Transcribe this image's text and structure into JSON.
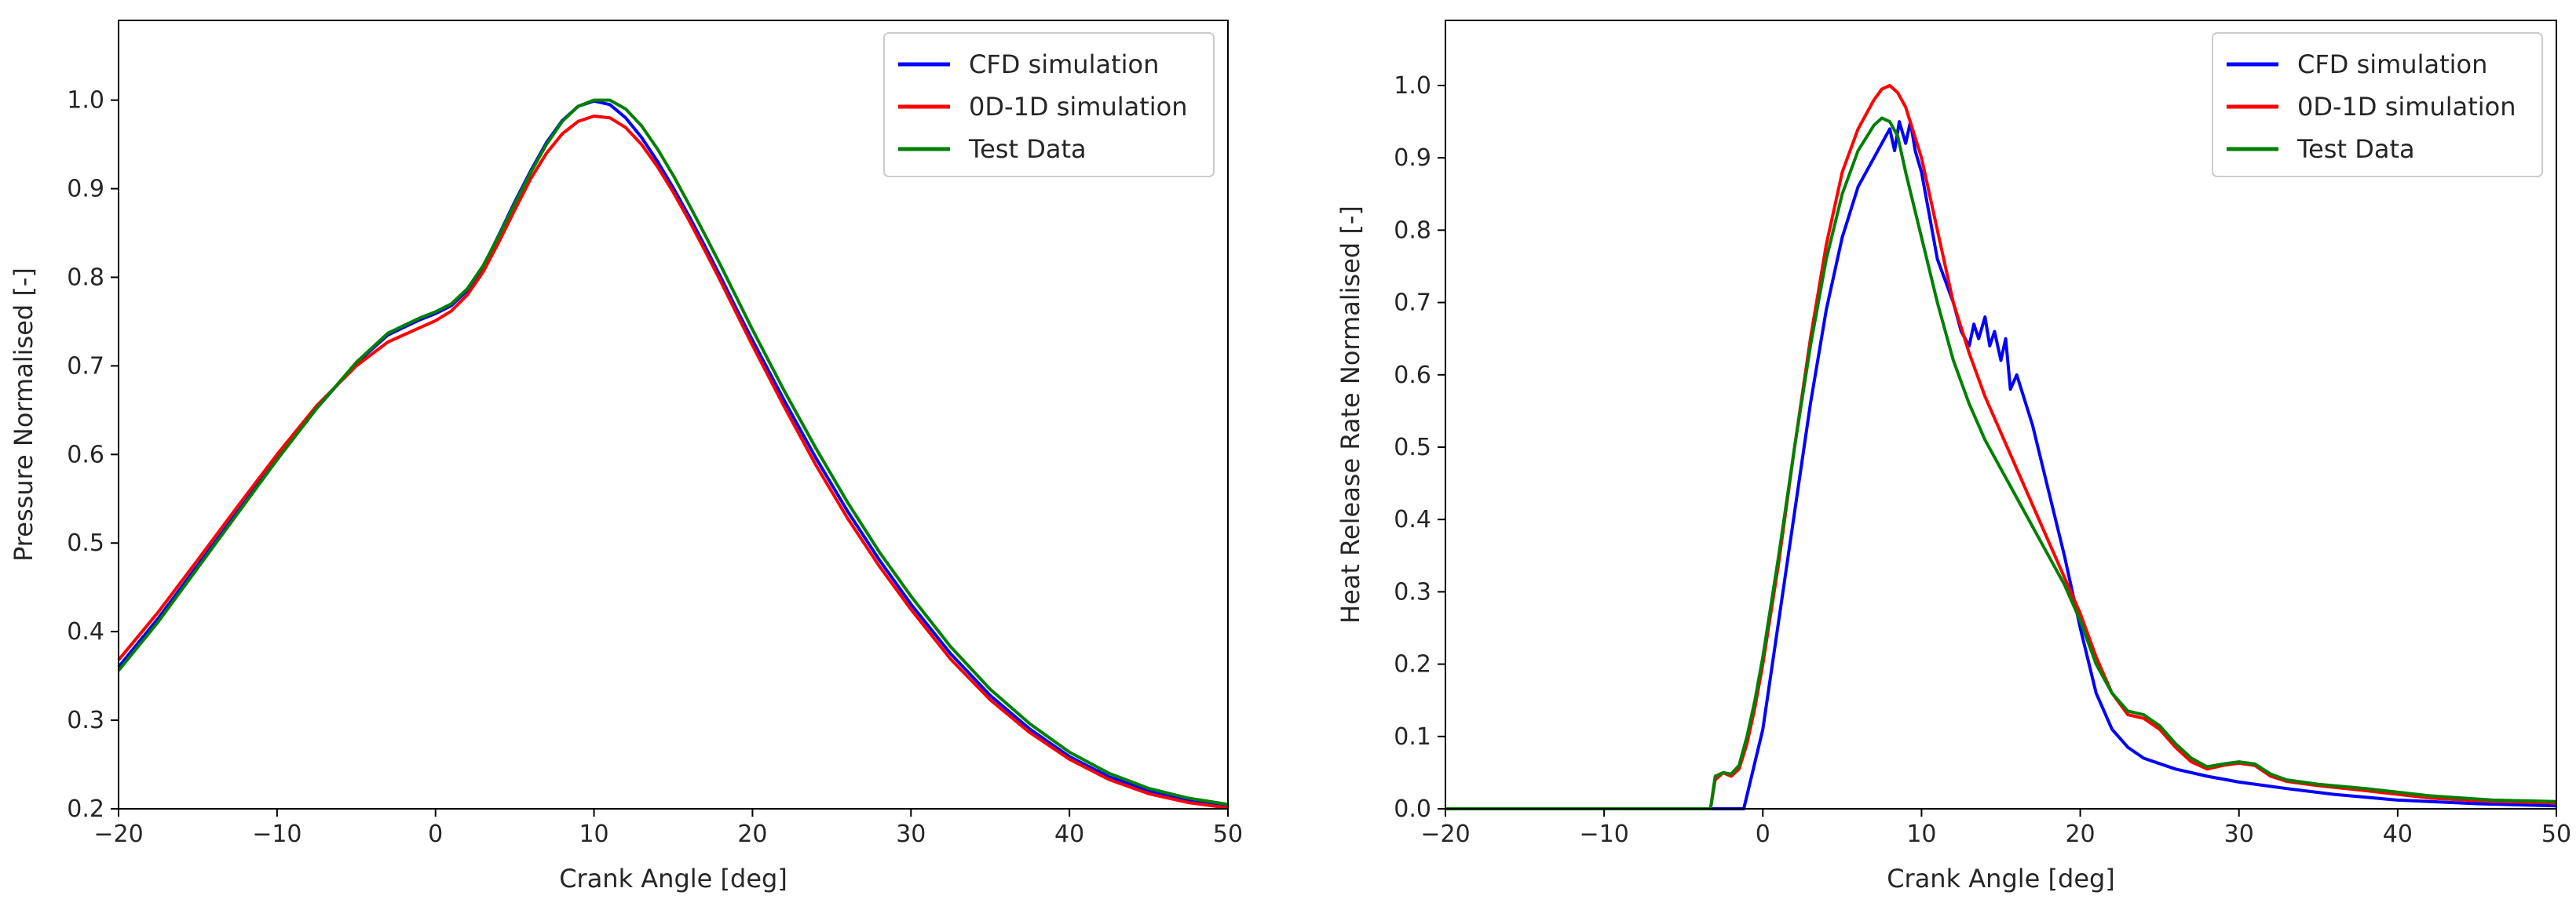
{
  "chart_data": [
    {
      "type": "line",
      "xlabel": "Crank Angle [deg]",
      "ylabel": "Pressure Normalised [-]",
      "xlim": [
        -20,
        50
      ],
      "ylim": [
        0.2,
        1.09
      ],
      "xticks": [
        -20,
        -10,
        0,
        10,
        20,
        30,
        40,
        50
      ],
      "xtick_labels": [
        "−20",
        "−10",
        "0",
        "10",
        "20",
        "30",
        "40",
        "50"
      ],
      "yticks": [
        0.2,
        0.3,
        0.4,
        0.5,
        0.6,
        0.7,
        0.8,
        0.9,
        1.0
      ],
      "ytick_labels": [
        "0.2",
        "0.3",
        "0.4",
        "0.5",
        "0.6",
        "0.7",
        "0.8",
        "0.9",
        "1.0"
      ],
      "grid": false,
      "legend_position": "top-right",
      "series": [
        {
          "name": "CFD simulation",
          "color": "#0000ff",
          "x": [
            -20,
            -17.5,
            -15,
            -12.5,
            -10,
            -7.5,
            -5,
            -3,
            -1,
            0,
            1,
            2,
            3,
            4,
            5,
            6,
            7,
            8,
            9,
            10,
            11,
            12,
            13,
            14,
            15,
            16,
            17,
            18,
            19,
            20,
            22,
            24,
            26,
            28,
            30,
            32.5,
            35,
            37.5,
            40,
            42.5,
            45,
            47.5,
            50
          ],
          "y": [
            0.36,
            0.415,
            0.475,
            0.535,
            0.595,
            0.652,
            0.703,
            0.735,
            0.752,
            0.759,
            0.768,
            0.785,
            0.812,
            0.848,
            0.885,
            0.92,
            0.952,
            0.977,
            0.993,
            0.999,
            0.995,
            0.98,
            0.958,
            0.931,
            0.901,
            0.869,
            0.835,
            0.8,
            0.764,
            0.729,
            0.661,
            0.596,
            0.536,
            0.481,
            0.431,
            0.375,
            0.328,
            0.29,
            0.259,
            0.236,
            0.22,
            0.209,
            0.202
          ]
        },
        {
          "name": "0D-1D simulation",
          "color": "#ff0000",
          "x": [
            -20,
            -17.5,
            -15,
            -12.5,
            -10,
            -7.5,
            -5,
            -3,
            -1,
            0,
            1,
            2,
            3,
            4,
            5,
            6,
            7,
            8,
            9,
            10,
            11,
            12,
            13,
            14,
            15,
            16,
            17,
            18,
            19,
            20,
            22,
            24,
            26,
            28,
            30,
            32.5,
            35,
            37.5,
            40,
            42.5,
            45,
            47.5,
            50
          ],
          "y": [
            0.368,
            0.422,
            0.481,
            0.541,
            0.6,
            0.655,
            0.7,
            0.727,
            0.743,
            0.751,
            0.762,
            0.78,
            0.806,
            0.84,
            0.876,
            0.911,
            0.94,
            0.962,
            0.976,
            0.982,
            0.98,
            0.969,
            0.95,
            0.925,
            0.896,
            0.864,
            0.83,
            0.795,
            0.759,
            0.723,
            0.654,
            0.588,
            0.528,
            0.474,
            0.425,
            0.369,
            0.323,
            0.286,
            0.256,
            0.233,
            0.217,
            0.207,
            0.201
          ]
        },
        {
          "name": "Test Data",
          "color": "#008000",
          "x": [
            -20,
            -17.5,
            -15,
            -12.5,
            -10,
            -7.5,
            -5,
            -3,
            -1,
            0,
            1,
            2,
            3,
            4,
            5,
            6,
            7,
            8,
            9,
            10,
            11,
            12,
            13,
            14,
            15,
            16,
            17,
            18,
            19,
            20,
            22,
            24,
            26,
            28,
            30,
            32.5,
            35,
            37.5,
            40,
            42.5,
            45,
            47.5,
            50
          ],
          "y": [
            0.356,
            0.411,
            0.472,
            0.533,
            0.594,
            0.652,
            0.704,
            0.737,
            0.754,
            0.761,
            0.77,
            0.787,
            0.813,
            0.847,
            0.883,
            0.918,
            0.95,
            0.976,
            0.993,
            1.0,
            1.0,
            0.99,
            0.971,
            0.945,
            0.915,
            0.882,
            0.848,
            0.813,
            0.777,
            0.741,
            0.672,
            0.607,
            0.546,
            0.49,
            0.44,
            0.383,
            0.335,
            0.296,
            0.264,
            0.24,
            0.223,
            0.212,
            0.205
          ]
        }
      ]
    },
    {
      "type": "line",
      "xlabel": "Crank Angle [deg]",
      "ylabel": "Heat Release Rate Normalised [-]",
      "xlim": [
        -20,
        50
      ],
      "ylim": [
        0.0,
        1.09
      ],
      "xticks": [
        -20,
        -10,
        0,
        10,
        20,
        30,
        40,
        50
      ],
      "xtick_labels": [
        "−20",
        "−10",
        "0",
        "10",
        "20",
        "30",
        "40",
        "50"
      ],
      "yticks": [
        0.0,
        0.1,
        0.2,
        0.3,
        0.4,
        0.5,
        0.6,
        0.7,
        0.8,
        0.9,
        1.0
      ],
      "ytick_labels": [
        "0.0",
        "0.1",
        "0.2",
        "0.3",
        "0.4",
        "0.5",
        "0.6",
        "0.7",
        "0.8",
        "0.9",
        "1.0"
      ],
      "grid": false,
      "legend_position": "top-right",
      "series": [
        {
          "name": "CFD simulation",
          "color": "#0000ff",
          "x": [
            -20,
            -2,
            -1.2,
            0,
            1,
            2,
            3,
            4,
            5,
            6,
            7,
            7.5,
            8,
            8.3,
            8.6,
            9,
            9.3,
            9.6,
            10,
            10.5,
            11,
            12,
            12.5,
            13,
            13.3,
            13.6,
            14,
            14.3,
            14.6,
            15,
            15.3,
            15.6,
            16,
            17,
            18,
            19,
            20,
            21,
            22,
            23,
            24,
            26,
            28,
            30,
            33,
            36,
            40,
            45,
            50
          ],
          "y": [
            0.0,
            0.0,
            0.0,
            0.11,
            0.26,
            0.41,
            0.56,
            0.69,
            0.79,
            0.86,
            0.9,
            0.92,
            0.94,
            0.91,
            0.95,
            0.92,
            0.95,
            0.91,
            0.88,
            0.82,
            0.76,
            0.7,
            0.66,
            0.64,
            0.67,
            0.65,
            0.68,
            0.64,
            0.66,
            0.62,
            0.65,
            0.58,
            0.6,
            0.53,
            0.44,
            0.35,
            0.25,
            0.16,
            0.11,
            0.085,
            0.07,
            0.055,
            0.045,
            0.037,
            0.028,
            0.02,
            0.012,
            0.007,
            0.004
          ]
        },
        {
          "name": "0D-1D simulation",
          "color": "#ff0000",
          "x": [
            -20,
            -3.3,
            -3,
            -2.5,
            -2,
            -1.5,
            -1,
            -0.5,
            0,
            1,
            2,
            3,
            4,
            5,
            6,
            7,
            7.5,
            8,
            8.5,
            9,
            10,
            11,
            12,
            13,
            14,
            15,
            16,
            17,
            18,
            19,
            20,
            21,
            22,
            23,
            24,
            25,
            26,
            27,
            28,
            29,
            30,
            31,
            32,
            33,
            35,
            38,
            42,
            46,
            50
          ],
          "y": [
            0.0,
            0.0,
            0.04,
            0.05,
            0.045,
            0.055,
            0.09,
            0.14,
            0.2,
            0.34,
            0.5,
            0.65,
            0.78,
            0.88,
            0.94,
            0.98,
            0.995,
            1.0,
            0.99,
            0.97,
            0.9,
            0.8,
            0.7,
            0.63,
            0.57,
            0.52,
            0.47,
            0.42,
            0.37,
            0.32,
            0.27,
            0.21,
            0.16,
            0.13,
            0.125,
            0.11,
            0.085,
            0.065,
            0.055,
            0.06,
            0.063,
            0.06,
            0.045,
            0.038,
            0.032,
            0.025,
            0.015,
            0.01,
            0.008
          ]
        },
        {
          "name": "Test Data",
          "color": "#008000",
          "x": [
            -20,
            -3.3,
            -3,
            -2.5,
            -2,
            -1.5,
            -1,
            -0.5,
            0,
            1,
            2,
            3,
            4,
            5,
            6,
            7,
            7.5,
            8,
            8.5,
            9,
            10,
            11,
            12,
            13,
            14,
            15,
            16,
            17,
            18,
            19,
            20,
            21,
            22,
            23,
            24,
            25,
            26,
            27,
            28,
            29,
            30,
            31,
            32,
            33,
            35,
            38,
            42,
            46,
            50
          ],
          "y": [
            0.0,
            0.0,
            0.045,
            0.05,
            0.048,
            0.06,
            0.1,
            0.15,
            0.21,
            0.35,
            0.5,
            0.64,
            0.76,
            0.85,
            0.91,
            0.945,
            0.955,
            0.95,
            0.93,
            0.88,
            0.79,
            0.7,
            0.62,
            0.56,
            0.51,
            0.47,
            0.43,
            0.39,
            0.35,
            0.31,
            0.26,
            0.2,
            0.16,
            0.135,
            0.13,
            0.115,
            0.09,
            0.07,
            0.058,
            0.062,
            0.065,
            0.062,
            0.048,
            0.04,
            0.034,
            0.028,
            0.018,
            0.012,
            0.01
          ]
        }
      ]
    }
  ]
}
